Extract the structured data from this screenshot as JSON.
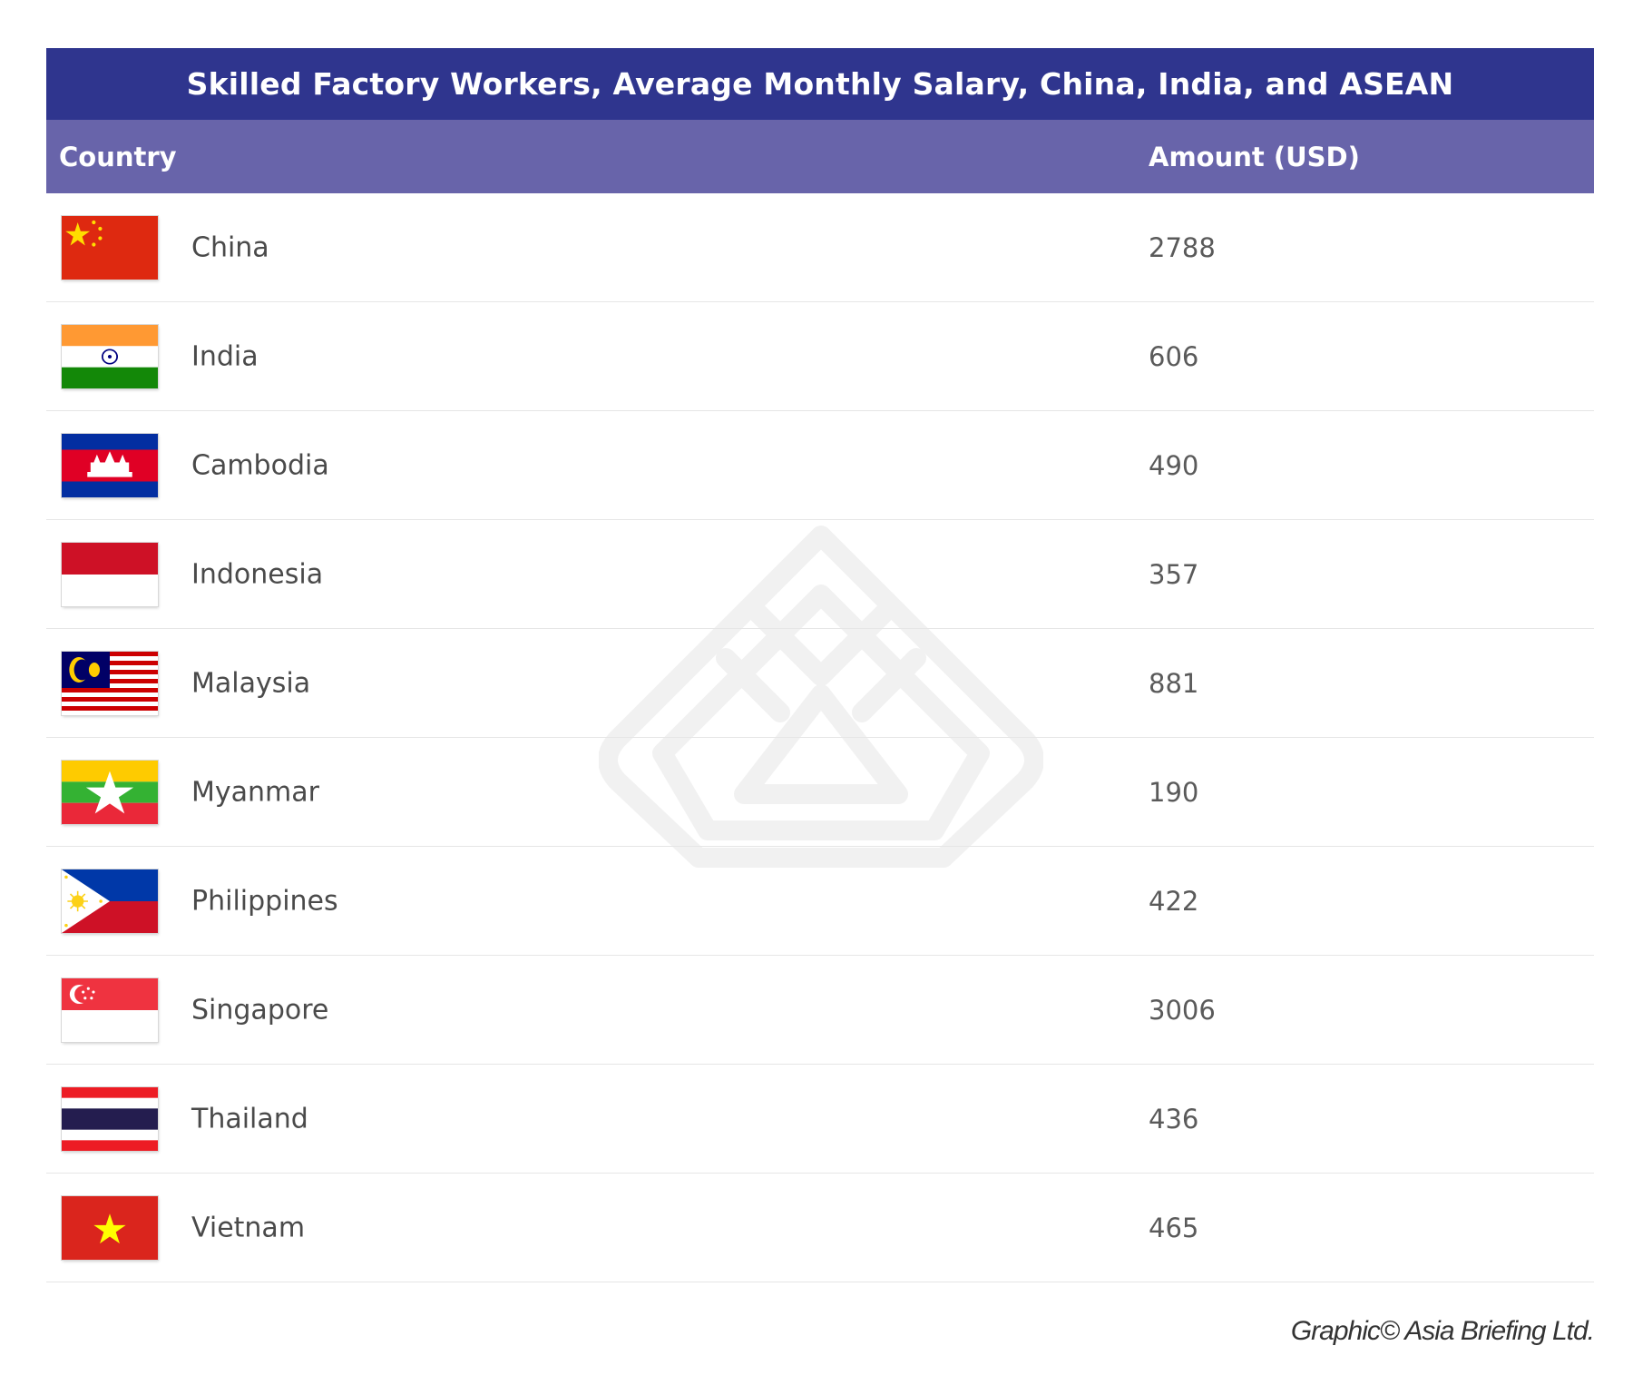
{
  "chart_data": {
    "type": "table",
    "title": "Skilled Factory Workers, Average Monthly Salary, China, India, and ASEAN",
    "columns": [
      "Country",
      "Amount (USD)"
    ],
    "rows": [
      {
        "country": "China",
        "amount": "2788",
        "flag": "china-flag-icon"
      },
      {
        "country": "India",
        "amount": "606",
        "flag": "india-flag-icon"
      },
      {
        "country": "Cambodia",
        "amount": "490",
        "flag": "cambodia-flag-icon"
      },
      {
        "country": "Indonesia",
        "amount": "357",
        "flag": "indonesia-flag-icon"
      },
      {
        "country": "Malaysia",
        "amount": "881",
        "flag": "malaysia-flag-icon"
      },
      {
        "country": "Myanmar",
        "amount": "190",
        "flag": "myanmar-flag-icon"
      },
      {
        "country": "Philippines",
        "amount": "422",
        "flag": "philippines-flag-icon"
      },
      {
        "country": "Singapore",
        "amount": "3006",
        "flag": "singapore-flag-icon"
      },
      {
        "country": "Thailand",
        "amount": "436",
        "flag": "thailand-flag-icon"
      },
      {
        "country": "Vietnam",
        "amount": "465",
        "flag": "vietnam-flag-icon"
      }
    ]
  },
  "footer": {
    "credit": "Graphic© Asia Briefing Ltd."
  },
  "colors": {
    "title_bar": "#2f358e",
    "header_bar": "#6864aa",
    "row_divider": "#e6e6e6"
  }
}
